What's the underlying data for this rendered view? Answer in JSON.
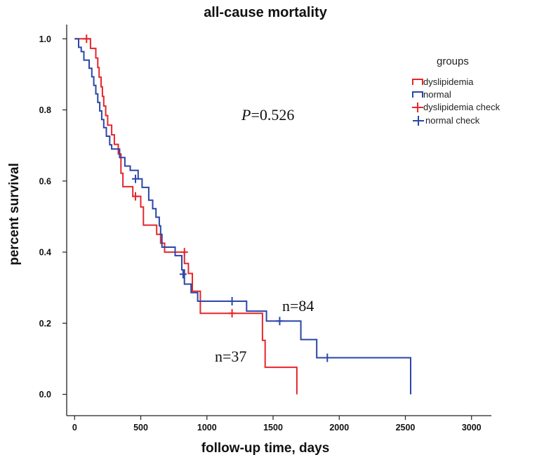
{
  "chart_data": {
    "type": "line",
    "subtype": "kaplan-meier step",
    "title": "all-cause mortality",
    "xlabel": "follow-up time, days",
    "ylabel": "percent survival",
    "xlim": [
      -60,
      3150
    ],
    "ylim": [
      -0.06,
      1.04
    ],
    "x_ticks": [
      "0",
      "500",
      "1000",
      "1500",
      "2000",
      "2500",
      "3000"
    ],
    "y_ticks": [
      "0.0",
      "0.2",
      "0.4",
      "0.6",
      "0.8",
      "1.0"
    ],
    "x_tick_values": [
      0,
      500,
      1000,
      1500,
      2000,
      2500,
      3000
    ],
    "y_tick_values": [
      0.0,
      0.2,
      0.4,
      0.6,
      0.8,
      1.0
    ],
    "legend": {
      "title": "groups",
      "position": "top-right",
      "entries": [
        "dyslipidemia",
        "normal",
        "dyslipidemia check",
        "normal check"
      ]
    },
    "annotations": {
      "p_italic": "P",
      "p_value": "=0.526",
      "n_normal": "n=84",
      "n_dyslipidemia": "n=37"
    },
    "series": [
      {
        "name": "dyslipidemia",
        "color": "#e5262b",
        "points": [
          [
            0,
            1.0
          ],
          [
            120,
            1.0
          ],
          [
            120,
            0.973
          ],
          [
            160,
            0.973
          ],
          [
            160,
            0.946
          ],
          [
            175,
            0.946
          ],
          [
            175,
            0.919
          ],
          [
            185,
            0.919
          ],
          [
            185,
            0.892
          ],
          [
            200,
            0.892
          ],
          [
            200,
            0.865
          ],
          [
            210,
            0.865
          ],
          [
            210,
            0.838
          ],
          [
            220,
            0.838
          ],
          [
            220,
            0.811
          ],
          [
            235,
            0.811
          ],
          [
            235,
            0.784
          ],
          [
            250,
            0.784
          ],
          [
            250,
            0.757
          ],
          [
            280,
            0.757
          ],
          [
            280,
            0.73
          ],
          [
            300,
            0.73
          ],
          [
            300,
            0.703
          ],
          [
            330,
            0.703
          ],
          [
            330,
            0.676
          ],
          [
            350,
            0.676
          ],
          [
            350,
            0.622
          ],
          [
            365,
            0.622
          ],
          [
            365,
            0.584
          ],
          [
            440,
            0.584
          ],
          [
            440,
            0.557
          ],
          [
            500,
            0.557
          ],
          [
            500,
            0.527
          ],
          [
            520,
            0.527
          ],
          [
            520,
            0.476
          ],
          [
            620,
            0.476
          ],
          [
            620,
            0.45
          ],
          [
            650,
            0.45
          ],
          [
            650,
            0.425
          ],
          [
            680,
            0.425
          ],
          [
            680,
            0.4
          ],
          [
            830,
            0.4
          ],
          [
            830,
            0.368
          ],
          [
            860,
            0.368
          ],
          [
            860,
            0.34
          ],
          [
            890,
            0.34
          ],
          [
            890,
            0.29
          ],
          [
            950,
            0.29
          ],
          [
            950,
            0.228
          ],
          [
            1420,
            0.228
          ],
          [
            1420,
            0.152
          ],
          [
            1440,
            0.152
          ],
          [
            1440,
            0.076
          ],
          [
            1680,
            0.076
          ],
          [
            1680,
            0.0
          ]
        ],
        "censored": [
          [
            90,
            1.0
          ],
          [
            460,
            0.557
          ],
          [
            830,
            0.4
          ],
          [
            1190,
            0.228
          ]
        ]
      },
      {
        "name": "normal",
        "color": "#2a46a8",
        "points": [
          [
            0,
            1.0
          ],
          [
            30,
            1.0
          ],
          [
            30,
            0.976
          ],
          [
            50,
            0.976
          ],
          [
            50,
            0.964
          ],
          [
            70,
            0.964
          ],
          [
            70,
            0.94
          ],
          [
            110,
            0.94
          ],
          [
            110,
            0.917
          ],
          [
            130,
            0.917
          ],
          [
            130,
            0.893
          ],
          [
            145,
            0.893
          ],
          [
            145,
            0.869
          ],
          [
            160,
            0.869
          ],
          [
            160,
            0.845
          ],
          [
            175,
            0.845
          ],
          [
            175,
            0.821
          ],
          [
            190,
            0.821
          ],
          [
            190,
            0.797
          ],
          [
            205,
            0.797
          ],
          [
            205,
            0.773
          ],
          [
            220,
            0.773
          ],
          [
            220,
            0.75
          ],
          [
            240,
            0.75
          ],
          [
            240,
            0.726
          ],
          [
            265,
            0.726
          ],
          [
            265,
            0.702
          ],
          [
            280,
            0.702
          ],
          [
            280,
            0.69
          ],
          [
            340,
            0.69
          ],
          [
            340,
            0.666
          ],
          [
            380,
            0.666
          ],
          [
            380,
            0.642
          ],
          [
            420,
            0.642
          ],
          [
            420,
            0.63
          ],
          [
            480,
            0.63
          ],
          [
            480,
            0.606
          ],
          [
            510,
            0.606
          ],
          [
            510,
            0.582
          ],
          [
            560,
            0.582
          ],
          [
            560,
            0.546
          ],
          [
            590,
            0.546
          ],
          [
            590,
            0.522
          ],
          [
            615,
            0.522
          ],
          [
            615,
            0.498
          ],
          [
            640,
            0.498
          ],
          [
            640,
            0.474
          ],
          [
            650,
            0.474
          ],
          [
            650,
            0.45
          ],
          [
            660,
            0.45
          ],
          [
            660,
            0.414
          ],
          [
            760,
            0.414
          ],
          [
            760,
            0.39
          ],
          [
            810,
            0.39
          ],
          [
            810,
            0.35
          ],
          [
            830,
            0.35
          ],
          [
            830,
            0.31
          ],
          [
            880,
            0.31
          ],
          [
            880,
            0.286
          ],
          [
            930,
            0.286
          ],
          [
            930,
            0.262
          ],
          [
            1300,
            0.262
          ],
          [
            1300,
            0.234
          ],
          [
            1450,
            0.234
          ],
          [
            1450,
            0.206
          ],
          [
            1710,
            0.206
          ],
          [
            1710,
            0.154
          ],
          [
            1830,
            0.154
          ],
          [
            1830,
            0.103
          ],
          [
            2540,
            0.103
          ],
          [
            2540,
            0.0
          ]
        ],
        "censored": [
          [
            460,
            0.606
          ],
          [
            820,
            0.338
          ],
          [
            1190,
            0.262
          ],
          [
            1550,
            0.206
          ],
          [
            1910,
            0.103
          ]
        ]
      }
    ]
  }
}
